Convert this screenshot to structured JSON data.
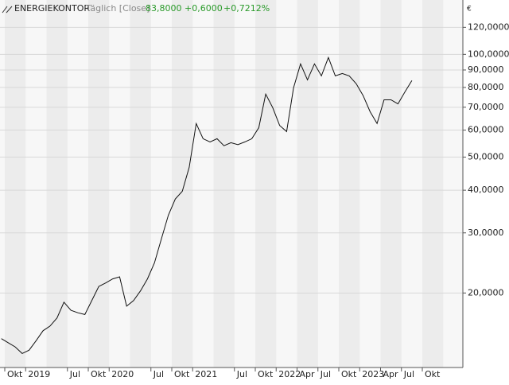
{
  "chart_data": {
    "type": "line",
    "title": "ENERGIEKONTOR",
    "subtitle": "Täglich [Close]",
    "quote": [
      "83,8000",
      "+0,6000",
      "+0,7212%"
    ],
    "currency": "€",
    "log_scale": true,
    "grid": true,
    "x": [
      "2018-09",
      "2018-10",
      "2018-11",
      "2018-12",
      "2019-01",
      "2019-02",
      "2019-03",
      "2019-04",
      "2019-05",
      "2019-06",
      "2019-07",
      "2019-08",
      "2019-09",
      "2019-10",
      "2019-11",
      "2019-12",
      "2020-01",
      "2020-02",
      "2020-03",
      "2020-04",
      "2020-05",
      "2020-06",
      "2020-07",
      "2020-08",
      "2020-09",
      "2020-10",
      "2020-11",
      "2020-12",
      "2021-01",
      "2021-02",
      "2021-03",
      "2021-04",
      "2021-05",
      "2021-06",
      "2021-07",
      "2021-08",
      "2021-09",
      "2021-10",
      "2021-11",
      "2021-12",
      "2022-01",
      "2022-02",
      "2022-03",
      "2022-04",
      "2022-05",
      "2022-06",
      "2022-07",
      "2022-08",
      "2022-09",
      "2022-10",
      "2022-11",
      "2022-12",
      "2023-01",
      "2023-02",
      "2023-03",
      "2023-04",
      "2023-05",
      "2023-06",
      "2023-07",
      "2023-08"
    ],
    "series": [
      {
        "name": "ENERGIEKONTOR",
        "color": "#111111",
        "values": [
          14.7,
          14.3,
          13.9,
          13.3,
          13.6,
          14.5,
          15.5,
          16.0,
          16.9,
          18.8,
          17.8,
          17.5,
          17.3,
          19.0,
          20.9,
          21.4,
          22.0,
          22.3,
          18.3,
          19.0,
          20.3,
          22.0,
          24.5,
          28.8,
          33.8,
          37.7,
          39.7,
          46.7,
          62.7,
          56.6,
          55.4,
          56.6,
          54.0,
          55.1,
          54.4,
          55.4,
          56.6,
          61.0,
          76.5,
          69.8,
          61.9,
          59.4,
          79.8,
          93.8,
          84.2,
          93.8,
          86.5,
          97.9,
          86.5,
          87.9,
          86.5,
          82.0,
          75.7,
          67.9,
          62.7,
          73.6,
          73.6,
          71.6,
          77.6,
          83.8
        ]
      }
    ],
    "ylim": [
      12.1,
      131
    ],
    "yticks": [
      {
        "value": 20,
        "label": "20,0000"
      },
      {
        "value": 30,
        "label": "30,0000"
      },
      {
        "value": 40,
        "label": "40,0000"
      },
      {
        "value": 50,
        "label": "50,0000"
      },
      {
        "value": 60,
        "label": "60,0000"
      },
      {
        "value": 70,
        "label": "70,0000"
      },
      {
        "value": 80,
        "label": "80,0000"
      },
      {
        "value": 90,
        "label": "90,0000"
      },
      {
        "value": 100,
        "label": "100,0000"
      },
      {
        "value": 120,
        "label": "120,0000"
      }
    ],
    "xticks": [
      {
        "value": "2018-10",
        "label": "Okt"
      },
      {
        "value": "2019-01",
        "label": "2019"
      },
      {
        "value": "2019-07",
        "label": "Jul"
      },
      {
        "value": "2019-10",
        "label": "Okt"
      },
      {
        "value": "2020-01",
        "label": "2020"
      },
      {
        "value": "2020-07",
        "label": "Jul"
      },
      {
        "value": "2020-10",
        "label": "Okt"
      },
      {
        "value": "2021-01",
        "label": "2021"
      },
      {
        "value": "2021-07",
        "label": "Jul"
      },
      {
        "value": "2021-10",
        "label": "Okt"
      },
      {
        "value": "2022-01",
        "label": "2022"
      },
      {
        "value": "2022-04",
        "label": "Apr"
      },
      {
        "value": "2022-07",
        "label": "Jul"
      },
      {
        "value": "2022-10",
        "label": "Okt"
      },
      {
        "value": "2023-01",
        "label": "2023"
      },
      {
        "value": "2023-04",
        "label": "Apr"
      },
      {
        "value": "2023-07",
        "label": "Jul"
      },
      {
        "value": "2023-10",
        "label": "Okt"
      }
    ]
  }
}
